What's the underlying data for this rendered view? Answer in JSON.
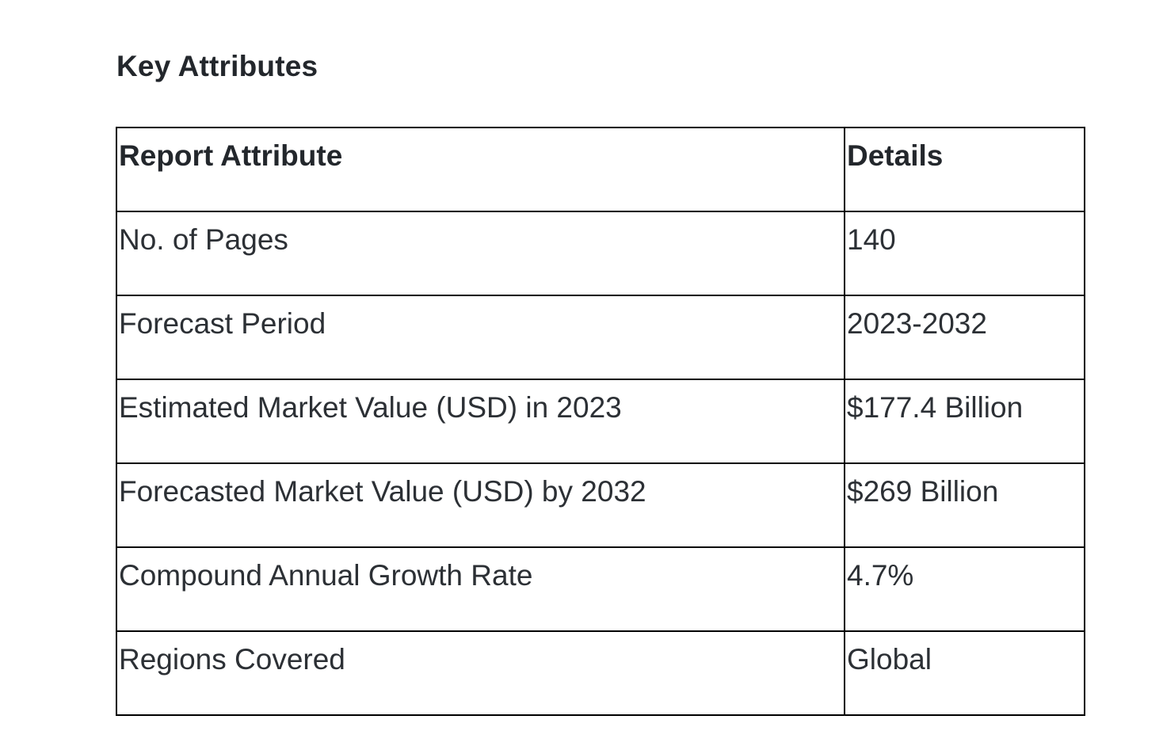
{
  "section": {
    "title": "Key Attributes"
  },
  "table": {
    "headers": [
      "Report Attribute",
      "Details"
    ],
    "rows": [
      [
        "No. of Pages",
        "140"
      ],
      [
        "Forecast Period",
        "2023-2032"
      ],
      [
        "Estimated Market Value (USD) in 2023",
        "$177.4 Billion"
      ],
      [
        "Forecasted Market Value (USD) by 2032",
        "$269 Billion"
      ],
      [
        "Compound Annual Growth Rate",
        "4.7%"
      ],
      [
        "Regions Covered",
        "Global"
      ]
    ]
  }
}
